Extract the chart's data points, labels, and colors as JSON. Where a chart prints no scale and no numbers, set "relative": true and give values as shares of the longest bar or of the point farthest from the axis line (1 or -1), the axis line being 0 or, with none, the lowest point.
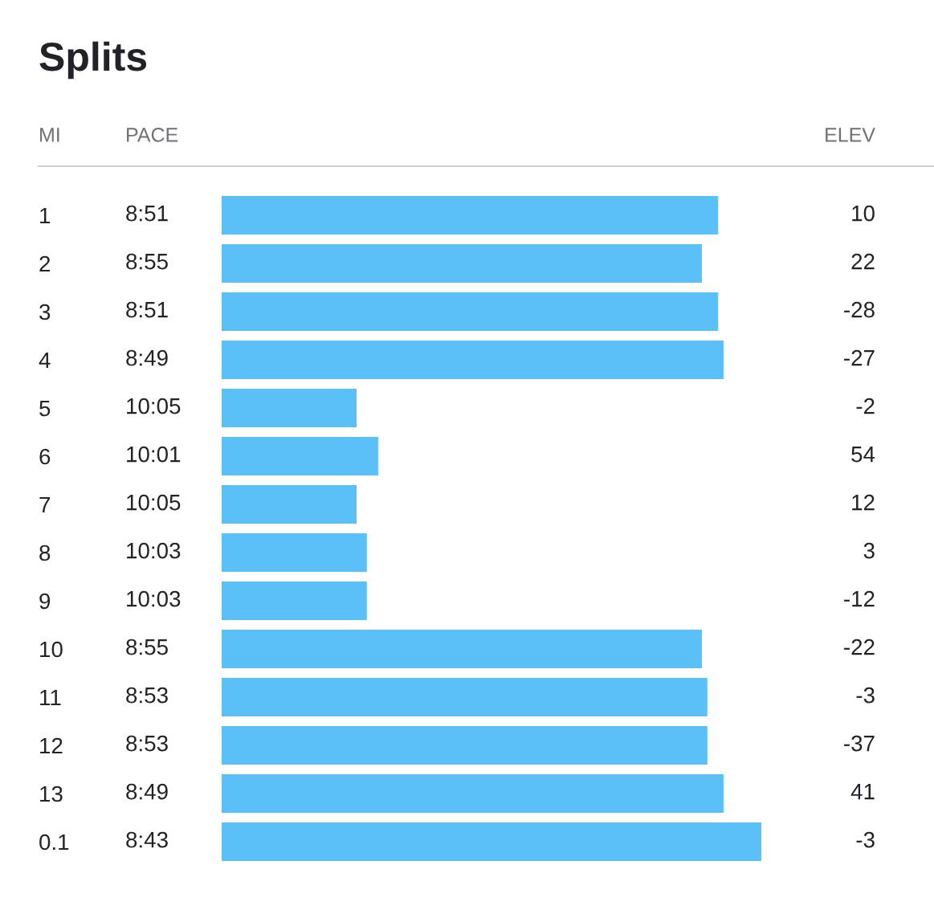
{
  "chart_data": {
    "type": "bar",
    "orientation": "horizontal",
    "relative": true,
    "title": "Splits",
    "ylabel": "MI",
    "categories": [
      "1",
      "2",
      "3",
      "4",
      "5",
      "6",
      "7",
      "8",
      "9",
      "10",
      "11",
      "12",
      "13",
      "0.1"
    ],
    "values": [
      0.92,
      0.89,
      0.92,
      0.93,
      0.25,
      0.29,
      0.25,
      0.269,
      0.269,
      0.89,
      0.9,
      0.9,
      0.93,
      1
    ],
    "color": "#5bc0f8",
    "annotations": [
      "PACE",
      "ELEV",
      "8:51",
      "8:55",
      "8:51",
      "8:49",
      "10:05",
      "10:01",
      "10:05",
      "10:03",
      "10:03",
      "8:55",
      "8:53",
      "8:53",
      "8:49",
      "8:43",
      "10",
      "22",
      "-28",
      "-27",
      "-2",
      "54",
      "12",
      "3",
      "-12",
      "-22",
      "-3",
      "-37",
      "41",
      "-3"
    ],
    "grid": false,
    "legend": false
  }
}
